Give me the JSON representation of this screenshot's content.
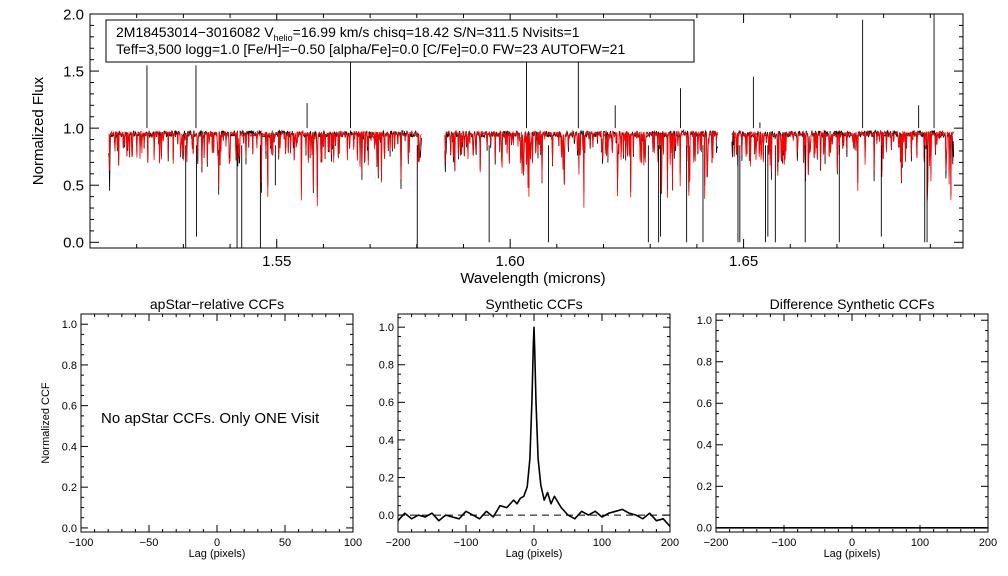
{
  "spectrum": {
    "type": "line",
    "info_line1_prefix": "2M18453014−3016082  V",
    "info_line1_sub": "helio",
    "info_line1_suffix": "=16.99 km/s  chisq=18.42  S/N=311.5  Nvisits=1",
    "info_line2": "Teff=3,500 logg=1.0 [Fe/H]=−0.50 [alpha/Fe]=0.0 [C/Fe]=0.0 FW=23 AUTOFW=21",
    "xlabel": "Wavelength (microns)",
    "ylabel": "Normalized Flux",
    "xlim": [
      1.51,
      1.697
    ],
    "ylim": [
      -0.05,
      2.0
    ],
    "xticks": [
      "1.55",
      "1.60",
      "1.65"
    ],
    "xtick_values": [
      1.55,
      1.6,
      1.65
    ],
    "yticks": [
      "0.0",
      "0.5",
      "1.0",
      "1.5",
      "2.0"
    ],
    "ytick_values": [
      0.0,
      0.5,
      1.0,
      1.5,
      2.0
    ],
    "chip_ranges": [
      [
        1.514,
        1.581
      ],
      [
        1.586,
        1.6445
      ],
      [
        1.6475,
        1.695
      ]
    ],
    "continuum": 0.95,
    "series": [
      {
        "name": "observed",
        "color": "#000000"
      },
      {
        "name": "model",
        "color": "#ff0000"
      }
    ],
    "absorption_lines": [
      {
        "x": 1.5305,
        "y": -0.05
      },
      {
        "x": 1.5328,
        "y": 0.05
      },
      {
        "x": 1.5415,
        "y": -0.05
      },
      {
        "x": 1.5425,
        "y": -0.05
      },
      {
        "x": 1.5465,
        "y": -0.05
      },
      {
        "x": 1.5497,
        "y": 0.5
      },
      {
        "x": 1.5801,
        "y": -0.05
      },
      {
        "x": 1.5955,
        "y": 0.0
      },
      {
        "x": 1.6082,
        "y": 0.0
      },
      {
        "x": 1.6296,
        "y": 0.0
      },
      {
        "x": 1.6318,
        "y": 0.0
      },
      {
        "x": 1.6322,
        "y": 0.05
      },
      {
        "x": 1.6378,
        "y": 0.0
      },
      {
        "x": 1.6413,
        "y": 0.0
      },
      {
        "x": 1.6488,
        "y": 0.0
      },
      {
        "x": 1.6492,
        "y": 0.0
      },
      {
        "x": 1.6547,
        "y": 0.0
      },
      {
        "x": 1.6552,
        "y": 0.05
      },
      {
        "x": 1.6568,
        "y": 0.0
      },
      {
        "x": 1.6632,
        "y": 0.0
      },
      {
        "x": 1.6705,
        "y": 0.0
      },
      {
        "x": 1.6795,
        "y": 0.05
      },
      {
        "x": 1.6888,
        "y": 0.0
      },
      {
        "x": 1.6893,
        "y": 0.0
      }
    ],
    "emission_spikes": [
      {
        "x": 1.5222,
        "y": 1.55
      },
      {
        "x": 1.5327,
        "y": 1.55
      },
      {
        "x": 1.5565,
        "y": 1.22
      },
      {
        "x": 1.5658,
        "y": 1.62
      },
      {
        "x": 1.6035,
        "y": 1.62
      },
      {
        "x": 1.6146,
        "y": 1.7
      },
      {
        "x": 1.6225,
        "y": 1.2
      },
      {
        "x": 1.6365,
        "y": 1.35
      },
      {
        "x": 1.6521,
        "y": 1.45
      },
      {
        "x": 1.6535,
        "y": 1.05
      },
      {
        "x": 1.6755,
        "y": 1.95
      },
      {
        "x": 1.6875,
        "y": 1.2
      },
      {
        "x": 1.6908,
        "y": 2.0
      }
    ]
  },
  "panels": [
    {
      "type": "line",
      "title": "apStar−relative CCFs",
      "xlabel": "Lag (pixels)",
      "ylabel": "Normalized CCF",
      "xlim": [
        -100,
        100
      ],
      "ylim": [
        -0.02,
        1.05
      ],
      "xticks": [
        "−100",
        "−50",
        "0",
        "50",
        "100"
      ],
      "xtick_values": [
        -100,
        -50,
        0,
        50,
        100
      ],
      "yticks": [
        "0.0",
        "0.2",
        "0.4",
        "0.6",
        "0.8",
        "1.0"
      ],
      "ytick_values": [
        0.0,
        0.2,
        0.4,
        0.6,
        0.8,
        1.0
      ],
      "message": "No apStar CCFs.  Only ONE Visit",
      "series": []
    },
    {
      "type": "line",
      "title": "Synthetic CCFs",
      "xlabel": "Lag (pixels)",
      "ylabel": "",
      "xlim": [
        -200,
        200
      ],
      "ylim": [
        -0.09,
        1.07
      ],
      "xticks": [
        "−200",
        "−100",
        "0",
        "100",
        "200"
      ],
      "xtick_values": [
        -200,
        -100,
        0,
        100,
        200
      ],
      "yticks": [
        "0.0",
        "0.2",
        "0.4",
        "0.6",
        "0.8",
        "1.0"
      ],
      "ytick_values": [
        0.0,
        0.2,
        0.4,
        0.6,
        0.8,
        1.0
      ],
      "message": "",
      "zero_line": true,
      "series": [
        {
          "name": "synthetic-ccf",
          "x": [
            -200,
            -190,
            -180,
            -170,
            -160,
            -150,
            -140,
            -130,
            -120,
            -110,
            -100,
            -90,
            -80,
            -70,
            -60,
            -50,
            -40,
            -30,
            -25,
            -20,
            -15,
            -10,
            -6,
            -3,
            -1,
            0,
            1,
            3,
            6,
            10,
            15,
            20,
            25,
            30,
            40,
            50,
            60,
            70,
            80,
            90,
            100,
            110,
            120,
            130,
            140,
            150,
            160,
            170,
            180,
            190,
            200
          ],
          "y": [
            -0.03,
            0.01,
            -0.02,
            0.0,
            -0.01,
            0.01,
            -0.03,
            0.0,
            -0.01,
            -0.02,
            0.02,
            0.0,
            -0.02,
            0.02,
            -0.01,
            0.05,
            0.04,
            0.08,
            0.06,
            0.09,
            0.1,
            0.15,
            0.3,
            0.62,
            0.9,
            1.0,
            0.88,
            0.6,
            0.3,
            0.16,
            0.08,
            0.12,
            0.06,
            0.1,
            0.04,
            0.0,
            -0.02,
            0.02,
            0.0,
            0.02,
            -0.01,
            0.01,
            0.02,
            0.03,
            0.01,
            0.0,
            -0.02,
            0.01,
            -0.03,
            -0.02,
            -0.06
          ]
        }
      ]
    },
    {
      "type": "line",
      "title": "Difference Synthetic CCFs",
      "xlabel": "Lag (pixels)",
      "ylabel": "",
      "xlim": [
        -200,
        200
      ],
      "ylim": [
        -0.02,
        1.03
      ],
      "xticks": [
        "−200",
        "−100",
        "0",
        "100",
        "200"
      ],
      "xtick_values": [
        -200,
        -100,
        0,
        100,
        200
      ],
      "yticks": [
        "0.0",
        "0.2",
        "0.4",
        "0.6",
        "0.8",
        "1.0"
      ],
      "ytick_values": [
        0.0,
        0.2,
        0.4,
        0.6,
        0.8,
        1.0
      ],
      "message": "",
      "flat_value": 0.0,
      "series": []
    }
  ]
}
